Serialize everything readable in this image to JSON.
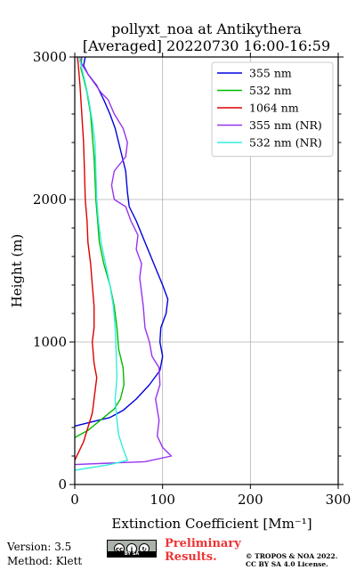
{
  "chart_data": {
    "type": "line",
    "title": [
      "pollyxt_noa at Antikythera",
      "[Averaged] 20220730 16:00-16:59"
    ],
    "xlabel": "Extinction Coefficient [Mm⁻¹]",
    "ylabel": "Height (m)",
    "xlim": [
      0,
      300
    ],
    "ylim": [
      0,
      3000
    ],
    "xticks": [
      0,
      100,
      200,
      300
    ],
    "yticks": [
      0,
      1000,
      2000,
      3000
    ],
    "grid": true,
    "legend_position": "top-right",
    "series": [
      {
        "name": "355 nm",
        "color": "#0000dd",
        "points": [
          [
            0,
            410
          ],
          [
            20,
            440
          ],
          [
            40,
            470
          ],
          [
            55,
            520
          ],
          [
            70,
            600
          ],
          [
            85,
            700
          ],
          [
            97,
            800
          ],
          [
            100,
            900
          ],
          [
            97,
            1000
          ],
          [
            98,
            1100
          ],
          [
            104,
            1200
          ],
          [
            106,
            1300
          ],
          [
            100,
            1400
          ],
          [
            90,
            1550
          ],
          [
            80,
            1700
          ],
          [
            70,
            1850
          ],
          [
            62,
            1950
          ],
          [
            60,
            2050
          ],
          [
            58,
            2200
          ],
          [
            52,
            2350
          ],
          [
            46,
            2500
          ],
          [
            40,
            2600
          ],
          [
            33,
            2700
          ],
          [
            25,
            2800
          ],
          [
            15,
            2880
          ],
          [
            10,
            2940
          ],
          [
            12,
            3000
          ]
        ]
      },
      {
        "name": "532 nm",
        "color": "#00bb00",
        "points": [
          [
            0,
            330
          ],
          [
            15,
            380
          ],
          [
            25,
            430
          ],
          [
            35,
            480
          ],
          [
            45,
            530
          ],
          [
            52,
            600
          ],
          [
            56,
            700
          ],
          [
            55,
            820
          ],
          [
            50,
            950
          ],
          [
            48,
            1100
          ],
          [
            45,
            1250
          ],
          [
            40,
            1400
          ],
          [
            33,
            1550
          ],
          [
            28,
            1700
          ],
          [
            26,
            1850
          ],
          [
            24,
            2000
          ],
          [
            23,
            2150
          ],
          [
            22,
            2300
          ],
          [
            20,
            2450
          ],
          [
            18,
            2600
          ],
          [
            14,
            2750
          ],
          [
            10,
            2850
          ],
          [
            7,
            2920
          ],
          [
            8,
            3000
          ]
        ]
      },
      {
        "name": "1064 nm",
        "color": "#dd0000",
        "points": [
          [
            0,
            170
          ],
          [
            10,
            300
          ],
          [
            20,
            500
          ],
          [
            22,
            600
          ],
          [
            25,
            750
          ],
          [
            22,
            850
          ],
          [
            20,
            1000
          ],
          [
            22,
            1100
          ],
          [
            22,
            1250
          ],
          [
            20,
            1400
          ],
          [
            18,
            1550
          ],
          [
            15,
            1700
          ],
          [
            14,
            1850
          ],
          [
            12,
            2000
          ],
          [
            11,
            2200
          ],
          [
            10,
            2400
          ],
          [
            8,
            2600
          ],
          [
            6,
            2800
          ],
          [
            4,
            2950
          ],
          [
            3,
            3000
          ]
        ]
      },
      {
        "name": "355 nm (NR)",
        "color": "#9933ee",
        "points": [
          [
            0,
            140
          ],
          [
            40,
            150
          ],
          [
            80,
            160
          ],
          [
            110,
            200
          ],
          [
            100,
            260
          ],
          [
            94,
            340
          ],
          [
            96,
            450
          ],
          [
            92,
            600
          ],
          [
            97,
            700
          ],
          [
            96,
            820
          ],
          [
            88,
            900
          ],
          [
            85,
            1000
          ],
          [
            80,
            1100
          ],
          [
            78,
            1250
          ],
          [
            76,
            1350
          ],
          [
            74,
            1450
          ],
          [
            76,
            1550
          ],
          [
            70,
            1650
          ],
          [
            72,
            1750
          ],
          [
            64,
            1850
          ],
          [
            58,
            1950
          ],
          [
            45,
            2000
          ],
          [
            42,
            2100
          ],
          [
            45,
            2200
          ],
          [
            58,
            2300
          ],
          [
            60,
            2400
          ],
          [
            55,
            2500
          ],
          [
            45,
            2600
          ],
          [
            38,
            2700
          ],
          [
            30,
            2750
          ],
          [
            22,
            2820
          ],
          [
            15,
            2880
          ],
          [
            10,
            2930
          ],
          [
            6,
            2970
          ],
          [
            8,
            3000
          ]
        ]
      },
      {
        "name": "532 nm (NR)",
        "color": "#33eedd",
        "points": [
          [
            0,
            100
          ],
          [
            20,
            120
          ],
          [
            40,
            140
          ],
          [
            60,
            170
          ],
          [
            55,
            250
          ],
          [
            50,
            350
          ],
          [
            48,
            450
          ],
          [
            46,
            600
          ],
          [
            48,
            750
          ],
          [
            47,
            950
          ],
          [
            46,
            1100
          ],
          [
            44,
            1250
          ],
          [
            40,
            1400
          ],
          [
            35,
            1550
          ],
          [
            30,
            1700
          ],
          [
            27,
            1850
          ],
          [
            25,
            2000
          ],
          [
            24,
            2200
          ],
          [
            23,
            2400
          ],
          [
            20,
            2550
          ],
          [
            16,
            2700
          ],
          [
            12,
            2820
          ],
          [
            8,
            2920
          ],
          [
            5,
            3000
          ]
        ]
      }
    ]
  },
  "footer": {
    "version": "Version: 3.5",
    "method": "Method: Klett",
    "prelim_line1": "Preliminary",
    "prelim_line2": "Results.",
    "copyright_line1": "© TROPOS & NOA 2022.",
    "copyright_line2": "CC BY SA 4.0 License.",
    "cc_label": "BY SA"
  }
}
